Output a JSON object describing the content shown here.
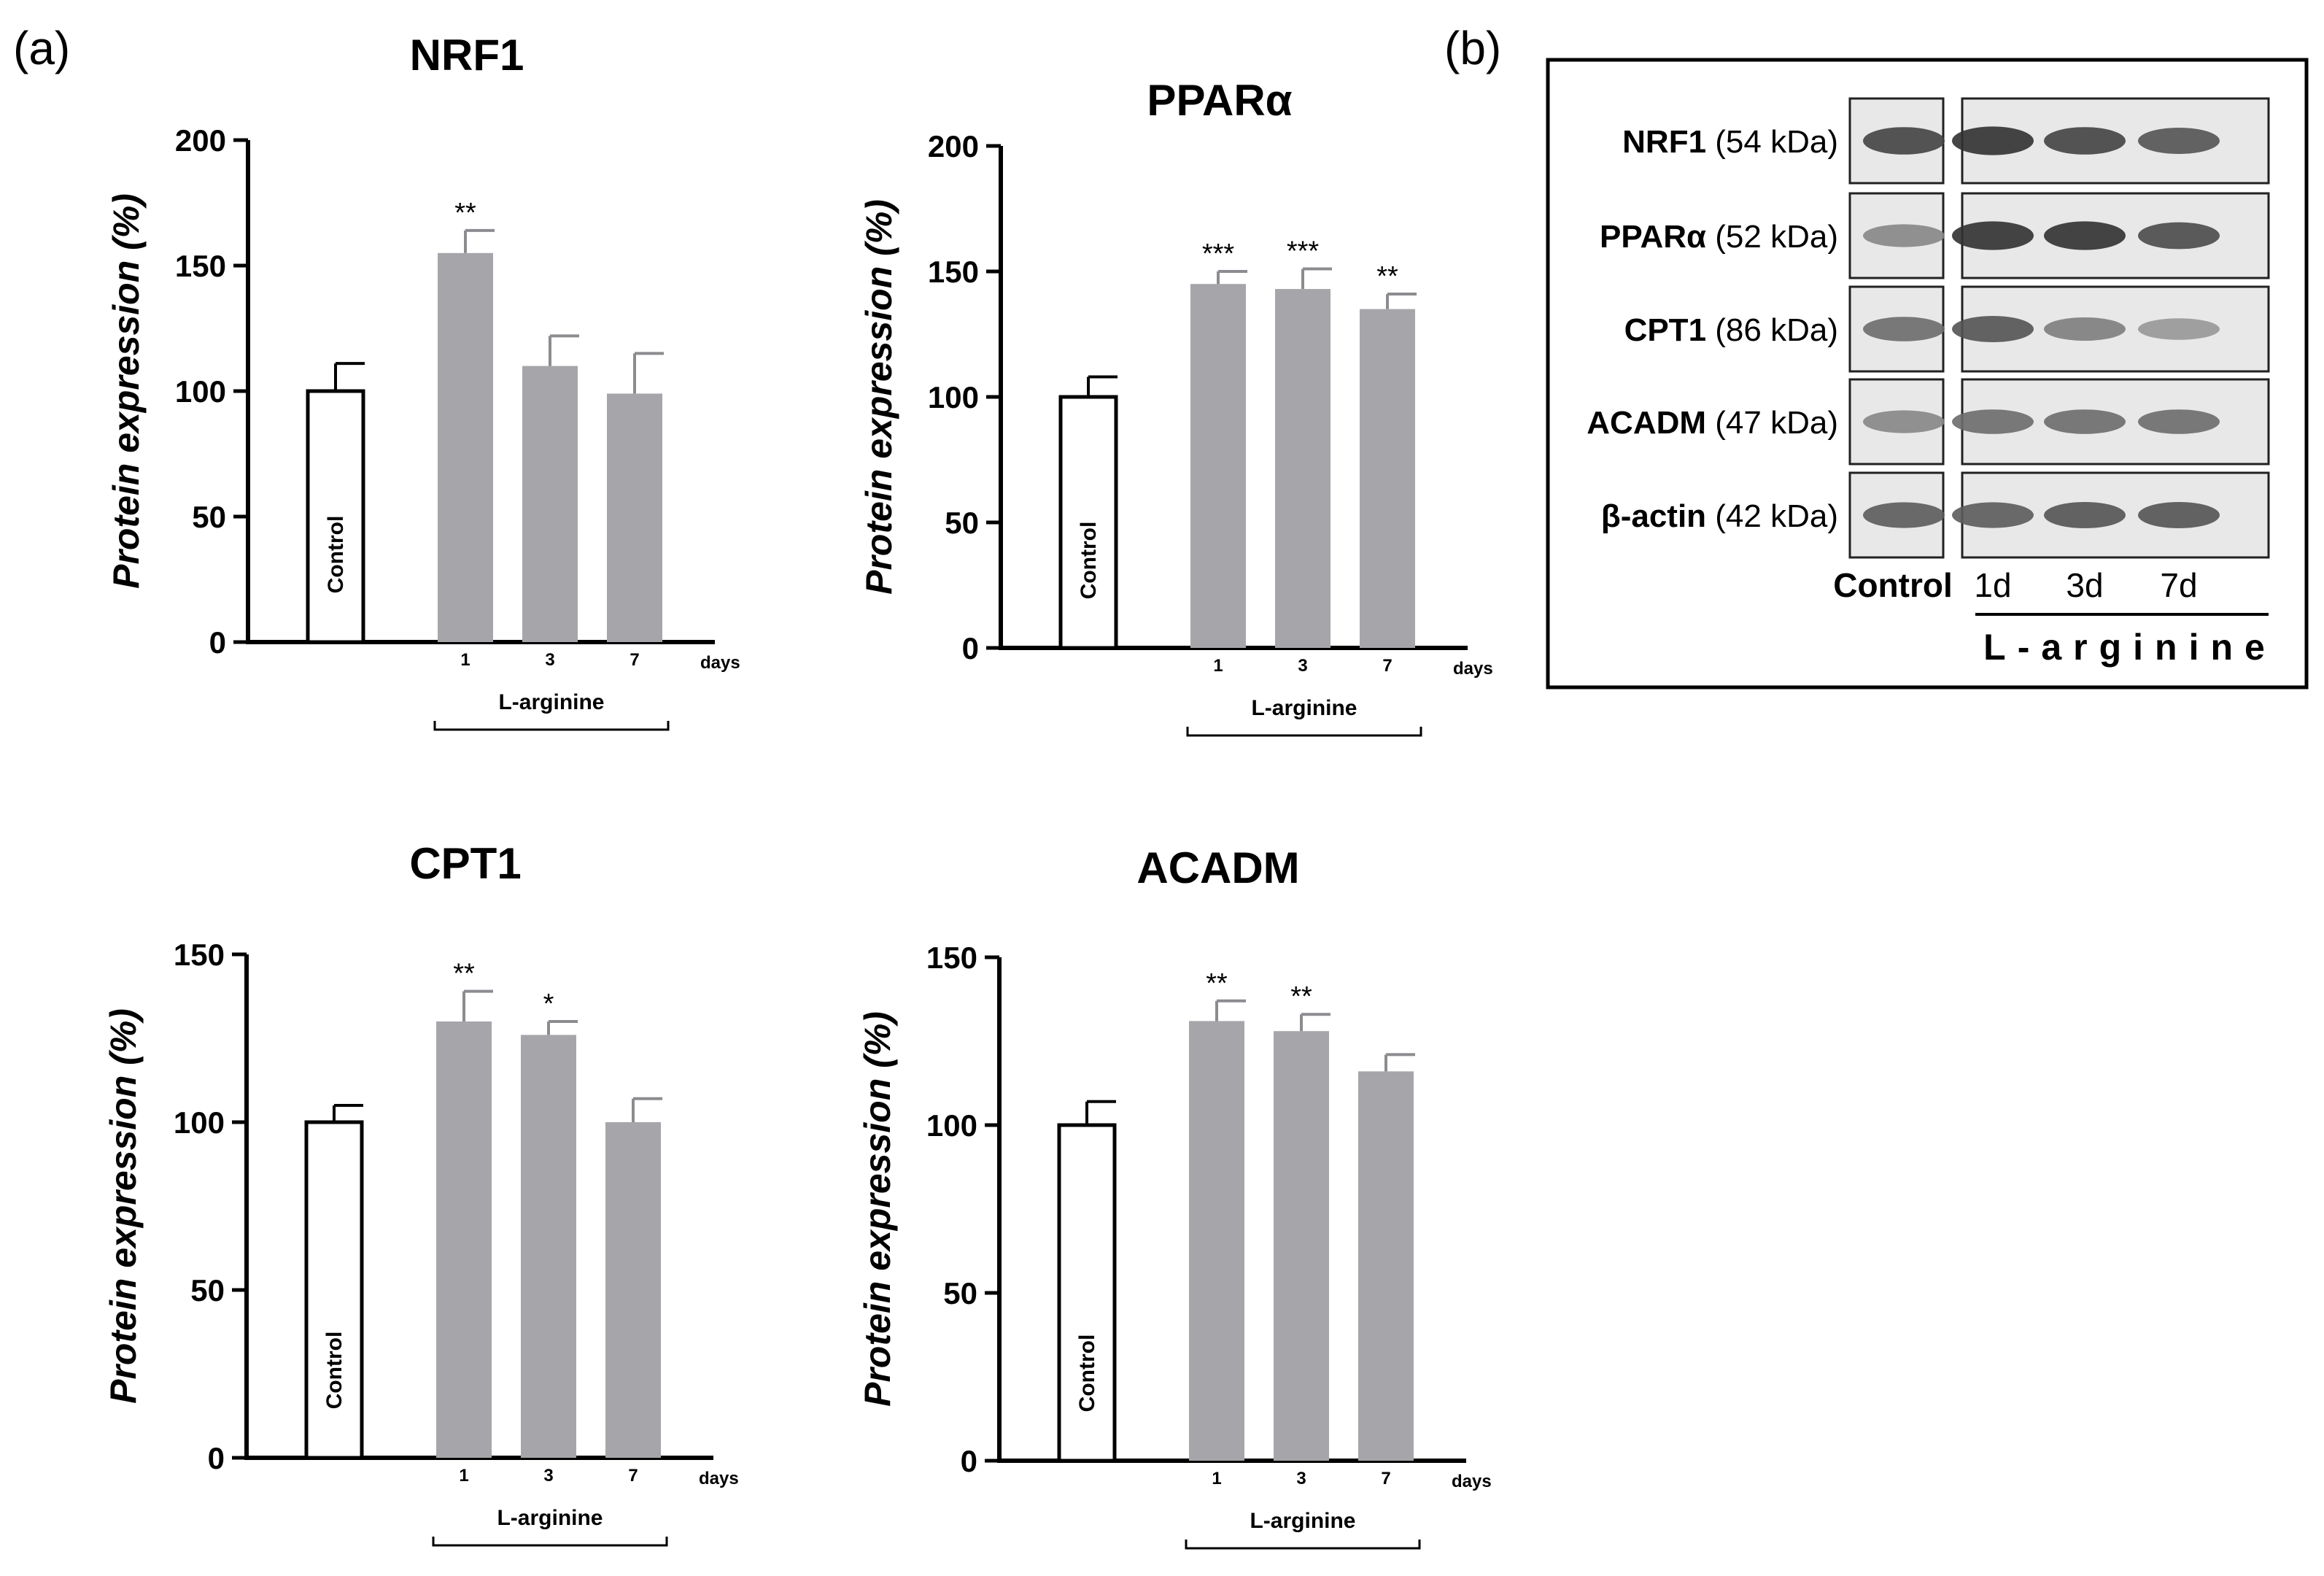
{
  "panel_labels": {
    "a": "(a)",
    "b": "(b)"
  },
  "chart_data": [
    {
      "type": "bar",
      "title": "NRF1",
      "ylabel": "Protein expression (%)",
      "xlabel": "",
      "ylim": [
        0,
        200
      ],
      "yticks": [
        0,
        50,
        100,
        150,
        200
      ],
      "categories": [
        "Control",
        "1",
        "3",
        "7"
      ],
      "values": [
        100,
        155,
        110,
        99
      ],
      "errors": [
        11,
        9,
        12,
        16
      ],
      "significance": [
        "",
        "**",
        "",
        ""
      ],
      "bar_colors": [
        "#ffffff",
        "#a6a6aa",
        "#a6a6aa",
        "#a6a6aa"
      ],
      "unit_label": "days",
      "group_label": "L-arginine"
    },
    {
      "type": "bar",
      "title": "PPARα",
      "ylabel": "Protein expression (%)",
      "xlabel": "",
      "ylim": [
        0,
        200
      ],
      "yticks": [
        0,
        50,
        100,
        150,
        200
      ],
      "categories": [
        "Control",
        "1",
        "3",
        "7"
      ],
      "values": [
        100,
        145,
        143,
        135
      ],
      "errors": [
        8,
        5,
        8,
        6
      ],
      "significance": [
        "",
        "***",
        "***",
        "**"
      ],
      "bar_colors": [
        "#ffffff",
        "#a6a6aa",
        "#a6a6aa",
        "#a6a6aa"
      ],
      "unit_label": "days",
      "group_label": "L-arginine"
    },
    {
      "type": "bar",
      "title": "CPT1",
      "ylabel": "Protein expression (%)",
      "xlabel": "",
      "ylim": [
        0,
        150
      ],
      "yticks": [
        0,
        50,
        100,
        150
      ],
      "categories": [
        "Control",
        "1",
        "3",
        "7"
      ],
      "values": [
        100,
        130,
        126,
        100
      ],
      "errors": [
        5,
        9,
        4,
        7
      ],
      "significance": [
        "",
        "**",
        "*",
        ""
      ],
      "bar_colors": [
        "#ffffff",
        "#a6a6aa",
        "#a6a6aa",
        "#a6a6aa"
      ],
      "unit_label": "days",
      "group_label": "L-arginine"
    },
    {
      "type": "bar",
      "title": "ACADM",
      "ylabel": "Protein expression (%)",
      "xlabel": "",
      "ylim": [
        0,
        150
      ],
      "yticks": [
        0,
        50,
        100,
        150
      ],
      "categories": [
        "Control",
        "1",
        "3",
        "7"
      ],
      "values": [
        100,
        131,
        128,
        116
      ],
      "errors": [
        7,
        6,
        5,
        5
      ],
      "significance": [
        "",
        "**",
        "**",
        ""
      ],
      "bar_colors": [
        "#ffffff",
        "#a6a6aa",
        "#a6a6aa",
        "#a6a6aa"
      ],
      "unit_label": "days",
      "group_label": "L-arginine"
    }
  ],
  "blot": {
    "rows": [
      {
        "protein": "NRF1",
        "mass": "(54 kDa)",
        "intensity": [
          0.85,
          0.95,
          0.85,
          0.75
        ]
      },
      {
        "protein": "PPARα",
        "mass": "(52 kDa)",
        "intensity": [
          0.45,
          0.95,
          0.95,
          0.8
        ]
      },
      {
        "protein": "CPT1",
        "mass": "(86 kDa)",
        "intensity": [
          0.6,
          0.75,
          0.5,
          0.35
        ]
      },
      {
        "protein": "ACADM",
        "mass": "(47 kDa)",
        "intensity": [
          0.45,
          0.6,
          0.6,
          0.6
        ]
      },
      {
        "protein": "β-actin",
        "mass": "(42 kDa)",
        "intensity": [
          0.7,
          0.7,
          0.75,
          0.75
        ]
      }
    ],
    "control_label": "Control",
    "lanes": [
      "1d",
      "3d",
      "7d"
    ],
    "group_label": "L-arginine"
  }
}
